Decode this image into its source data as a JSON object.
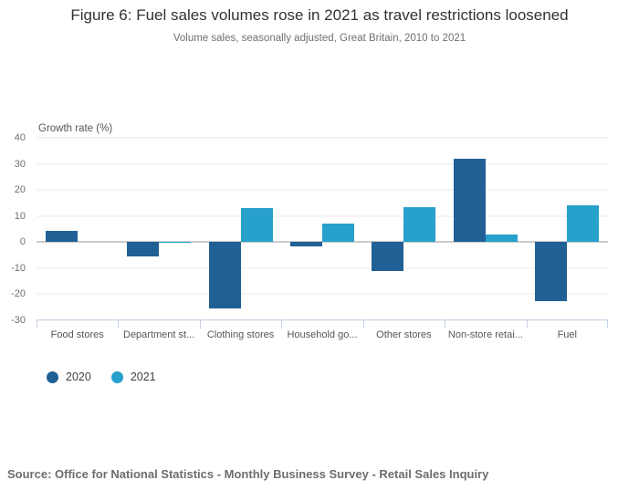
{
  "header": {
    "title": "Figure 6: Fuel sales volumes rose in 2021 as travel restrictions loosened",
    "subtitle": "Volume sales, seasonally adjusted, Great Britain, 2010 to 2021"
  },
  "chart_data": {
    "type": "bar",
    "categories": [
      "Food stores",
      "Department st...",
      "Clothing stores",
      "Household go...",
      "Other stores",
      "Non-store retai...",
      "Fuel"
    ],
    "series": [
      {
        "name": "2020",
        "color": "#206095",
        "values": [
          4.4,
          -5.5,
          -25.5,
          -1.5,
          -11,
          32,
          -22.5
        ]
      },
      {
        "name": "2021",
        "color": "#27A0CC",
        "values": [
          0,
          -0.3,
          13,
          7,
          13.5,
          3,
          14
        ]
      }
    ],
    "title": "Figure 6: Fuel sales volumes rose in 2021 as travel restrictions loosened",
    "subtitle": "Volume sales, seasonally adjusted, Great Britain, 2010 to 2021",
    "ylabel": "Growth rate (%)",
    "xlabel": "",
    "yticks": [
      40,
      30,
      20,
      10,
      0,
      -10,
      -20,
      -30
    ],
    "ylim": [
      -30,
      40
    ],
    "grid": true,
    "grid_color": "#e9e9e9",
    "zero_line_color": "#cccccc",
    "axis_color": "#c6d2e1",
    "legend_position": "bottom-left"
  },
  "legend": {
    "items": [
      {
        "label": "2020",
        "color": "#206095"
      },
      {
        "label": "2021",
        "color": "#27A0CC"
      }
    ]
  },
  "source": {
    "text": "Source: Office for National Statistics - Monthly Business Survey - Retail Sales Inquiry"
  }
}
